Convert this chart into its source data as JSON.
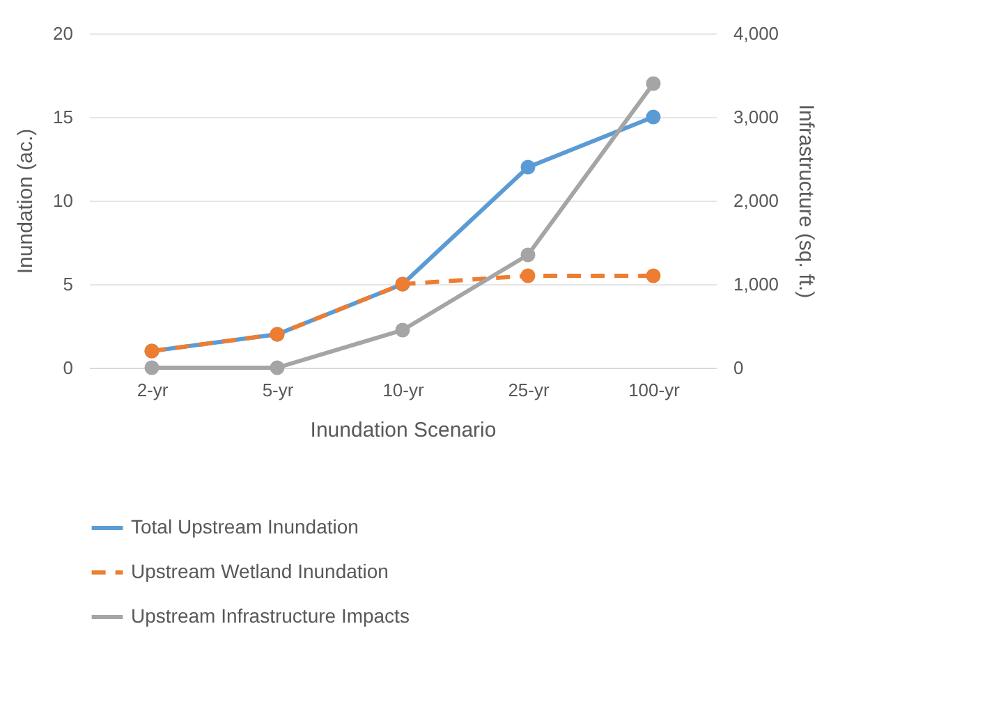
{
  "chart_data": {
    "type": "line",
    "xlabel": "Inundation Scenario",
    "ylabel": "Inundation (ac.)",
    "y2label": "Infrastructure (sq. ft.)",
    "categories": [
      "2-yr",
      "5-yr",
      "10-yr",
      "25-yr",
      "100-yr"
    ],
    "series": [
      {
        "name": "Total Upstream Inundation",
        "color": "#5b9bd5",
        "values": [
          1,
          2,
          5,
          12,
          15
        ],
        "line_style": "solid"
      },
      {
        "name": "Upstream Wetland Inundation",
        "color": "#ed7d31",
        "values": [
          1,
          2,
          5,
          5.5,
          5.5
        ],
        "line_style": "dashed"
      },
      {
        "name": "Upstream Infrastructure Impacts",
        "color": "#a5a5a5",
        "values": [
          0,
          0,
          450,
          1350,
          3400
        ],
        "axis": "y2",
        "line_style": "solid"
      }
    ],
    "ylim": [
      0,
      20
    ],
    "yticks": [
      0,
      5,
      10,
      15,
      20
    ],
    "y2lim": [
      0,
      4000
    ],
    "y2ticks": [
      0,
      {
        "value": 1000,
        "label": "1,000"
      },
      {
        "value": 2000,
        "label": "2,000"
      },
      {
        "value": 3000,
        "label": "3,000"
      },
      {
        "value": 4000,
        "label": "4,000"
      }
    ],
    "grid": "y",
    "legend": "bottom",
    "marker": "circle"
  }
}
